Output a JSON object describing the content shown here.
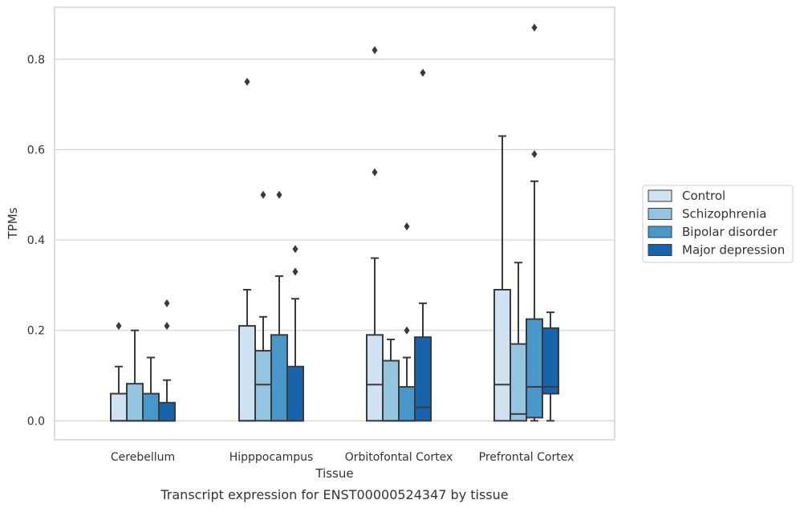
{
  "chart_data": {
    "type": "box",
    "title": "",
    "xlabel": "Tissue",
    "ylabel": "TPMs",
    "caption": "Transcript expression for ENST00000524347 by tissue",
    "ylim": [
      -0.042,
      0.915
    ],
    "yticks": [
      0.0,
      0.2,
      0.4,
      0.6,
      0.8
    ],
    "ytick_labels": [
      "0.0",
      "0.2",
      "0.4",
      "0.6",
      "0.8"
    ],
    "grid": "horizontal",
    "legend_position": "right",
    "categories": [
      "Cerebellum",
      "Hipppocampus",
      "Orbitofontal Cortex",
      "Prefrontal Cortex"
    ],
    "series": [
      {
        "name": "Control",
        "color": "#d0e1f2",
        "boxes": [
          {
            "min": 0.0,
            "q1": 0.0,
            "median": 0.0,
            "q3": 0.06,
            "max": 0.12,
            "outliers": [
              0.21
            ]
          },
          {
            "min": 0.0,
            "q1": 0.0,
            "median": 0.0,
            "q3": 0.21,
            "max": 0.29,
            "outliers": [
              0.75
            ]
          },
          {
            "min": 0.0,
            "q1": 0.0,
            "median": 0.08,
            "q3": 0.19,
            "max": 0.36,
            "outliers": [
              0.55,
              0.82
            ]
          },
          {
            "min": 0.0,
            "q1": 0.0,
            "median": 0.08,
            "q3": 0.29,
            "max": 0.63,
            "outliers": []
          }
        ]
      },
      {
        "name": "Schizophrenia",
        "color": "#94c4df",
        "boxes": [
          {
            "min": 0.0,
            "q1": 0.0,
            "median": 0.0,
            "q3": 0.082,
            "max": 0.2,
            "outliers": []
          },
          {
            "min": 0.0,
            "q1": 0.0,
            "median": 0.08,
            "q3": 0.155,
            "max": 0.23,
            "outliers": [
              0.5
            ]
          },
          {
            "min": 0.0,
            "q1": 0.0,
            "median": 0.0,
            "q3": 0.133,
            "max": 0.18,
            "outliers": []
          },
          {
            "min": 0.0,
            "q1": 0.0,
            "median": 0.015,
            "q3": 0.17,
            "max": 0.35,
            "outliers": []
          }
        ]
      },
      {
        "name": "Bipolar disorder",
        "color": "#4a98c9",
        "boxes": [
          {
            "min": 0.0,
            "q1": 0.0,
            "median": 0.0,
            "q3": 0.06,
            "max": 0.14,
            "outliers": []
          },
          {
            "min": 0.0,
            "q1": 0.0,
            "median": 0.0,
            "q3": 0.19,
            "max": 0.32,
            "outliers": [
              0.5
            ]
          },
          {
            "min": 0.0,
            "q1": 0.0,
            "median": 0.0,
            "q3": 0.075,
            "max": 0.14,
            "outliers": [
              0.2,
              0.43
            ]
          },
          {
            "min": 0.0,
            "q1": 0.007,
            "median": 0.075,
            "q3": 0.225,
            "max": 0.53,
            "outliers": [
              0.59,
              0.87
            ]
          }
        ]
      },
      {
        "name": "Major depression",
        "color": "#1764ab",
        "boxes": [
          {
            "min": 0.0,
            "q1": 0.0,
            "median": 0.0,
            "q3": 0.04,
            "max": 0.09,
            "outliers": [
              0.21,
              0.26
            ]
          },
          {
            "min": 0.0,
            "q1": 0.0,
            "median": 0.0,
            "q3": 0.12,
            "max": 0.27,
            "outliers": [
              0.33,
              0.38
            ]
          },
          {
            "min": 0.0,
            "q1": 0.0,
            "median": 0.03,
            "q3": 0.185,
            "max": 0.26,
            "outliers": [
              0.77
            ]
          },
          {
            "min": 0.0,
            "q1": 0.06,
            "median": 0.075,
            "q3": 0.205,
            "max": 0.24,
            "outliers": []
          }
        ]
      }
    ]
  }
}
